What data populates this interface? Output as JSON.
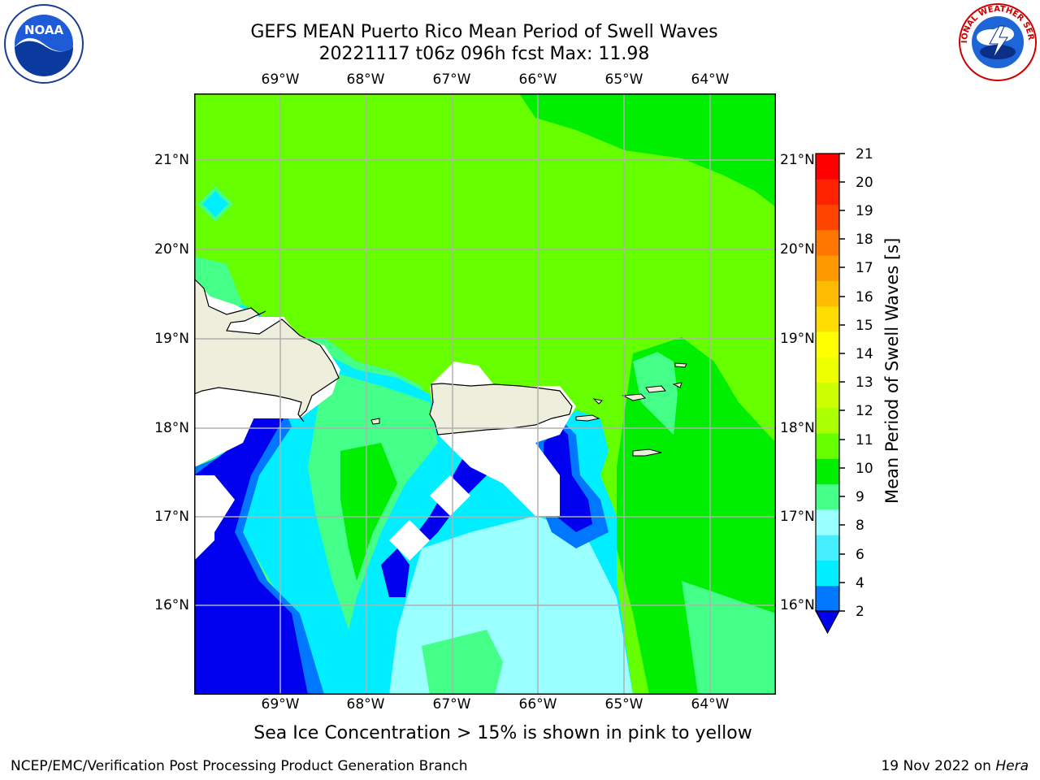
{
  "header": {
    "title_line1": "GEFS MEAN Puerto Rico Mean Period of Swell Waves",
    "title_line2": "20221117 t06z 096h fcst   Max: 11.98"
  },
  "logos": {
    "left": "NOAA",
    "right": "NATIONAL WEATHER SERVICE"
  },
  "map": {
    "lon_labels": [
      "69°W",
      "68°W",
      "67°W",
      "66°W",
      "65°W",
      "64°W"
    ],
    "lat_labels": [
      "21°N",
      "20°N",
      "19°N",
      "18°N",
      "17°N",
      "16°N"
    ],
    "colors": {
      "land": "#eeeedd",
      "coast": "#000000",
      "grid": "#b0b0b0",
      "nodata": "#ffffff"
    }
  },
  "colorbar": {
    "label": "Mean Period of Swell Waves [s]",
    "ticks": [
      "21",
      "20",
      "19",
      "18",
      "17",
      "16",
      "15",
      "14",
      "13",
      "12",
      "11",
      "10",
      "9",
      "8",
      "6",
      "4",
      "2"
    ],
    "colors": [
      "#0000ee",
      "#0077ff",
      "#00eeff",
      "#44eeff",
      "#99ffff",
      "#44ff88",
      "#00ee00",
      "#66ff00",
      "#aaff00",
      "#ccff00",
      "#eeff00",
      "#ffff00",
      "#ffdd00",
      "#ffbb00",
      "#ff9900",
      "#ff7700",
      "#ff4400",
      "#ff2200",
      "#ff0000"
    ]
  },
  "note": "Sea Ice Concentration > 15% is shown in pink to yellow",
  "footer": {
    "left": "NCEP/EMC/Verification Post Processing Product Generation Branch",
    "right_date": "19 Nov 2022 on ",
    "right_host": "Hera"
  }
}
